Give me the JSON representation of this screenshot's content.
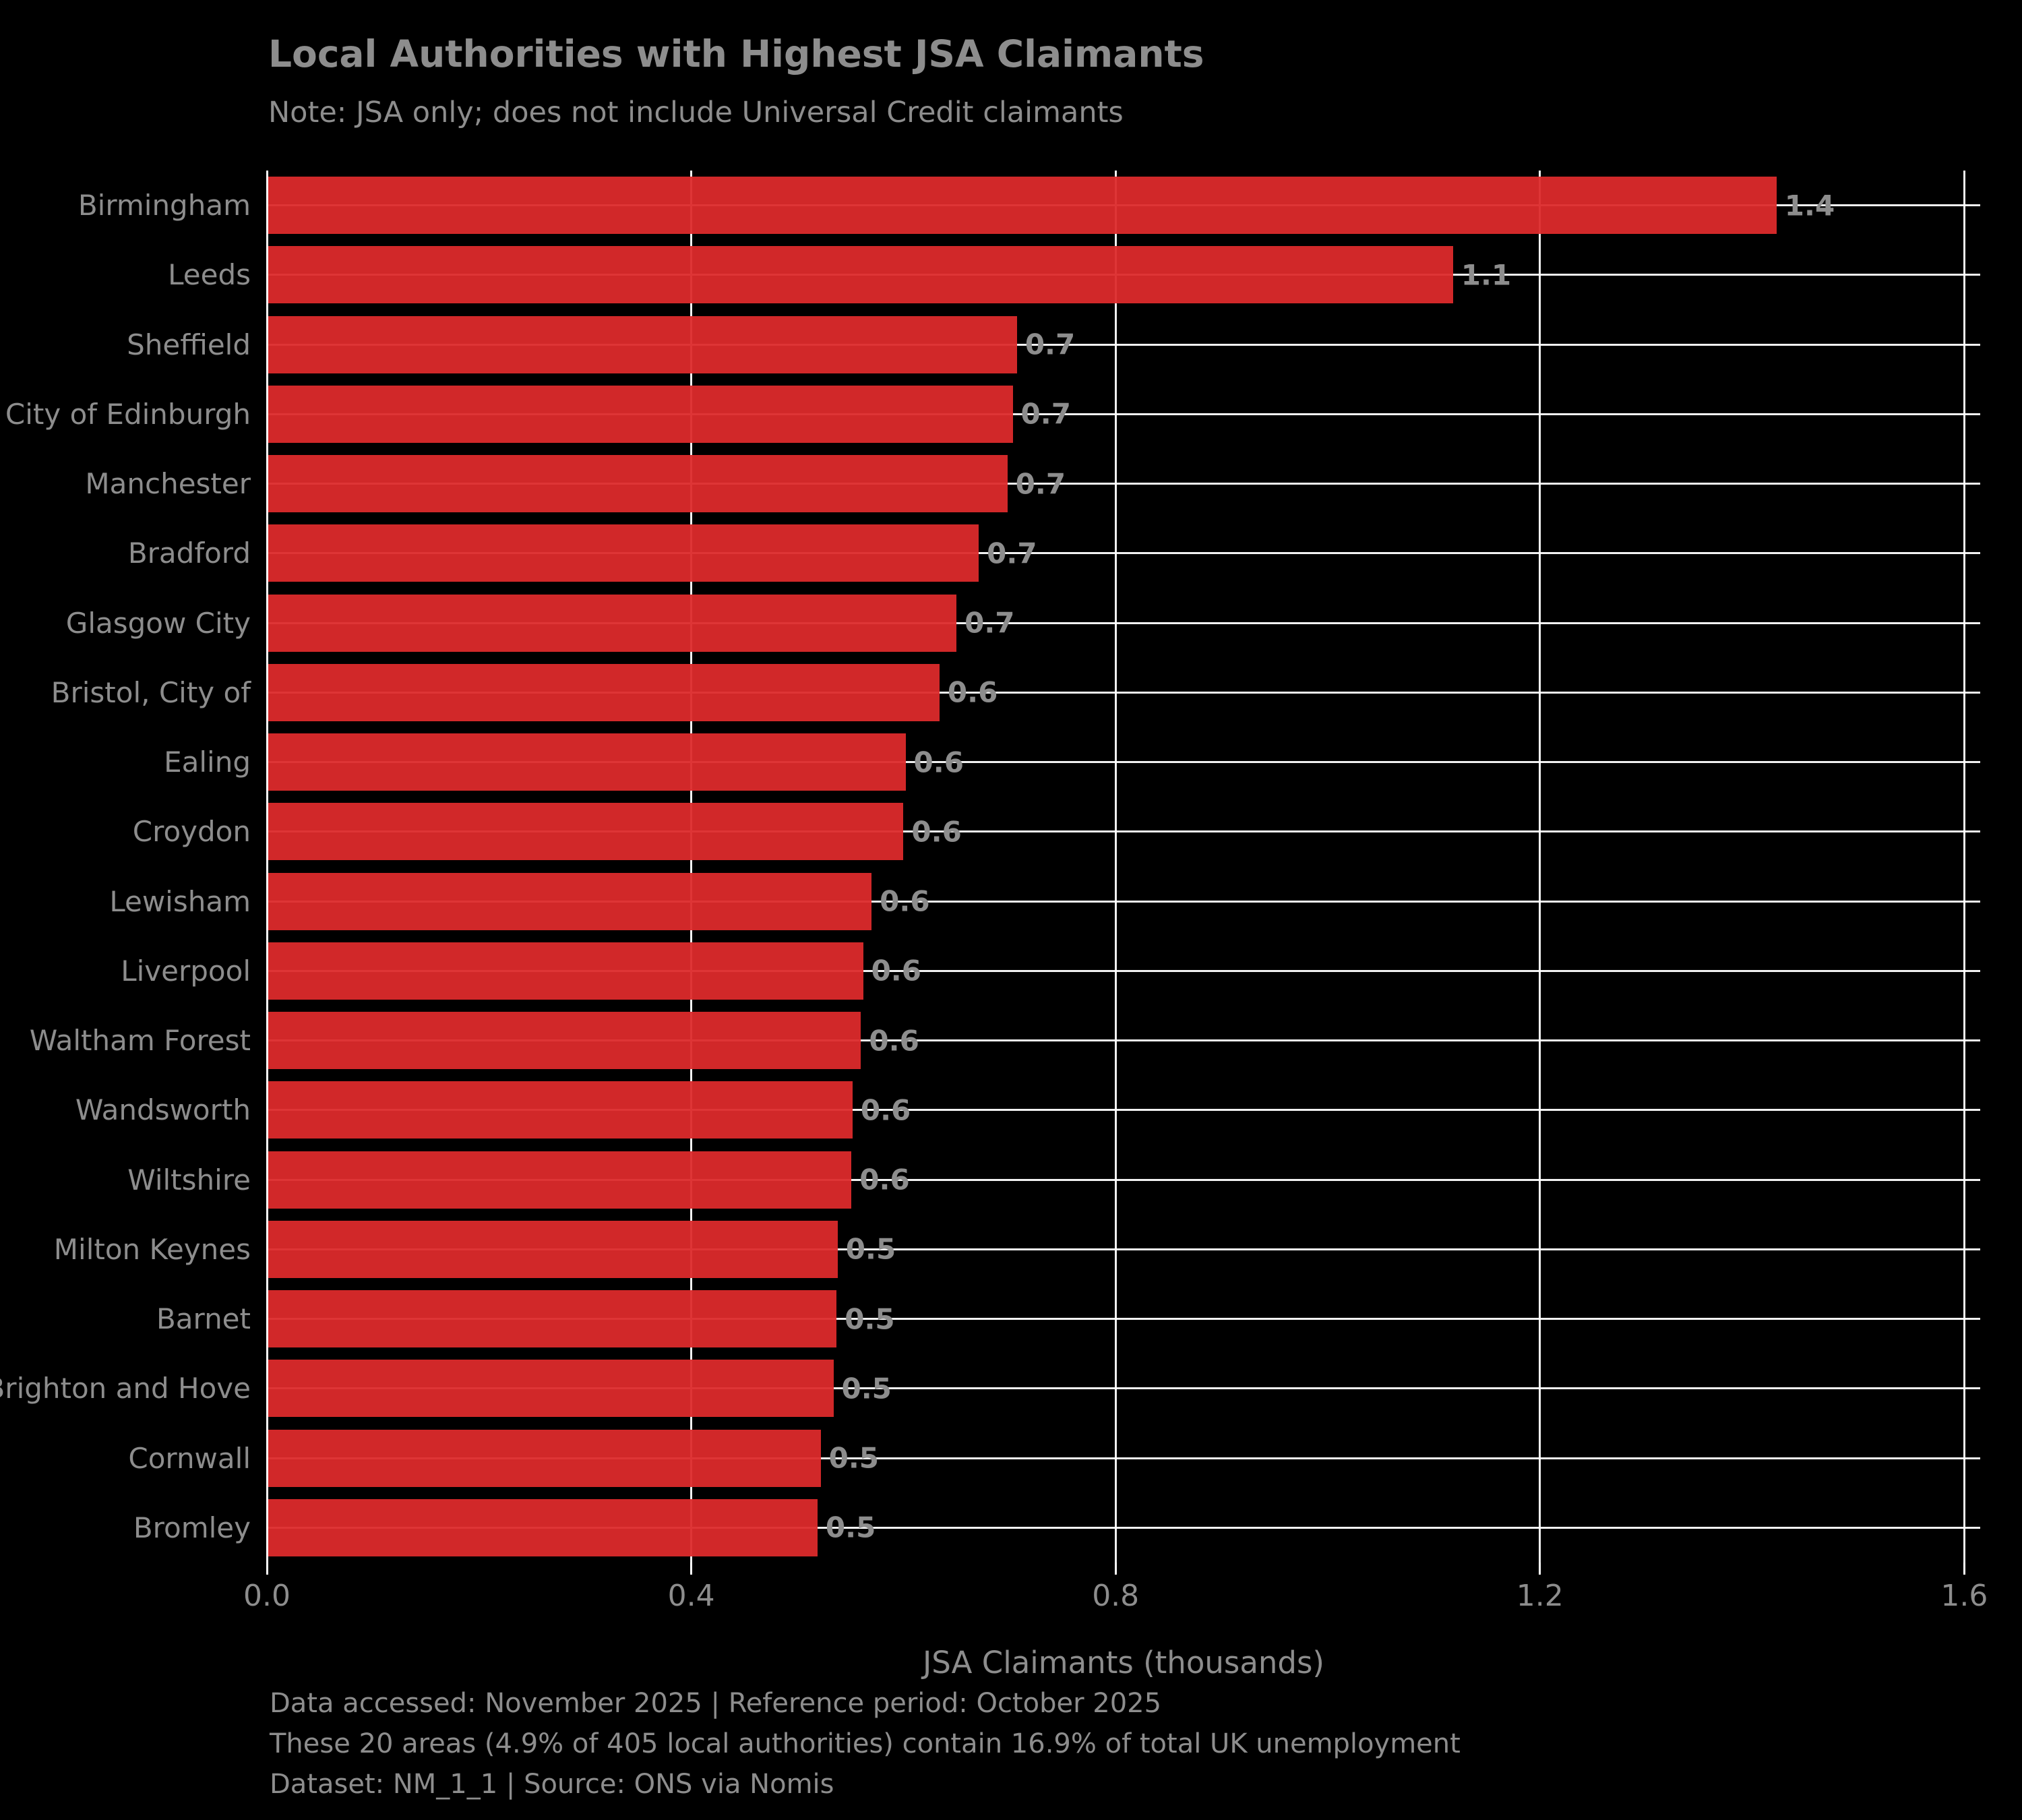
{
  "chart_data": {
    "type": "bar",
    "orientation": "horizontal",
    "title": "Local Authorities with Highest JSA Claimants",
    "subtitle": "Note: JSA only; does not include Universal Credit claimants",
    "xlabel": "JSA Claimants (thousands)",
    "categories": [
      "Birmingham",
      "Leeds",
      "Sheffield",
      "City of Edinburgh",
      "Manchester",
      "Bradford",
      "Glasgow City",
      "Bristol, City of",
      "Ealing",
      "Croydon",
      "Lewisham",
      "Liverpool",
      "Waltham Forest",
      "Wandsworth",
      "Wiltshire",
      "Milton Keynes",
      "Barnet",
      "Brighton and Hove",
      "Cornwall",
      "Bromley"
    ],
    "values": [
      1.423,
      1.118,
      0.707,
      0.703,
      0.698,
      0.671,
      0.65,
      0.634,
      0.602,
      0.6,
      0.57,
      0.562,
      0.56,
      0.552,
      0.551,
      0.538,
      0.537,
      0.534,
      0.522,
      0.519
    ],
    "bar_labels": [
      "1.4",
      "1.1",
      "0.7",
      "0.7",
      "0.7",
      "0.7",
      "0.7",
      "0.6",
      "0.6",
      "0.6",
      "0.6",
      "0.6",
      "0.6",
      "0.6",
      "0.6",
      "0.5",
      "0.5",
      "0.5",
      "0.5",
      "0.5"
    ],
    "xlim": [
      0,
      1.615
    ],
    "xtick_values": [
      0,
      0.4,
      0.8,
      1.2,
      1.6
    ],
    "xtick_labels": [
      "0.0",
      "0.4",
      "0.8",
      "1.2",
      "1.6"
    ],
    "grid": true,
    "legend": "none",
    "bar_color": "#d62728",
    "background_color": "#000000",
    "text_color": "#8d8d8d",
    "gridline_color": "#ffffff"
  },
  "footer": {
    "line1": "Data accessed: November 2025 | Reference period: October 2025",
    "line2": "These 20 areas (4.9% of 405 local authorities) contain 16.9% of total UK unemployment",
    "line3": "Dataset: NM_1_1 | Source: ONS via Nomis"
  }
}
